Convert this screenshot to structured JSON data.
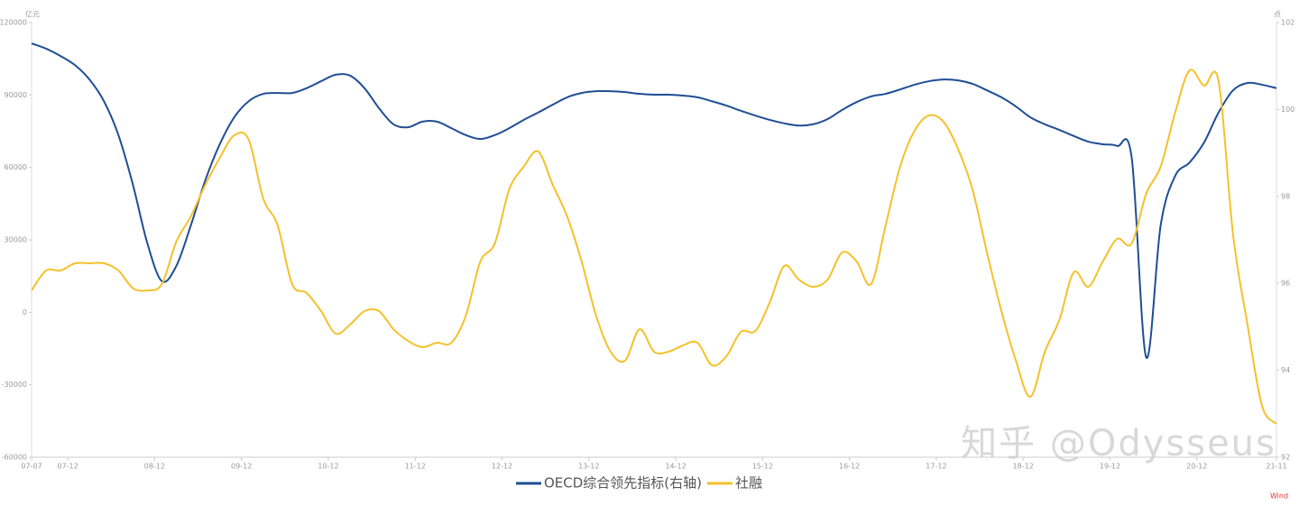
{
  "chart_data": {
    "type": "line",
    "y_unit": "亿元",
    "y2_unit": "点",
    "source": "Wind",
    "watermark": "知乎 @Odysseus",
    "x": [
      0,
      2,
      4,
      6,
      8,
      10,
      12,
      14,
      16,
      18,
      20,
      22,
      24,
      26,
      28,
      30,
      32,
      34,
      36,
      38,
      40,
      42,
      44,
      46,
      48,
      50,
      52,
      54,
      56,
      58,
      60,
      62,
      64,
      66,
      68,
      70,
      72,
      74,
      76,
      78,
      80,
      82,
      84,
      86,
      88,
      90,
      92,
      94,
      96,
      98,
      100,
      102,
      104,
      106,
      108,
      110,
      112,
      114,
      116,
      118,
      120,
      122,
      124,
      126,
      128,
      130,
      132,
      134,
      136,
      138,
      140,
      142,
      144,
      146,
      148,
      150,
      152,
      154,
      156,
      158,
      160,
      162,
      164,
      166,
      168,
      170,
      172
    ],
    "xlim": [
      0,
      172
    ],
    "xticks": [
      {
        "value": 0,
        "label": "07-07"
      },
      {
        "value": 5,
        "label": "07-12"
      },
      {
        "value": 17,
        "label": "08-12"
      },
      {
        "value": 29,
        "label": "09-12"
      },
      {
        "value": 41,
        "label": "10-12"
      },
      {
        "value": 53,
        "label": "11-12"
      },
      {
        "value": 65,
        "label": "12-12"
      },
      {
        "value": 77,
        "label": "13-12"
      },
      {
        "value": 89,
        "label": "14-12"
      },
      {
        "value": 101,
        "label": "15-12"
      },
      {
        "value": 113,
        "label": "16-12"
      },
      {
        "value": 125,
        "label": "17-12"
      },
      {
        "value": 137,
        "label": "18-12"
      },
      {
        "value": 149,
        "label": "19-12"
      },
      {
        "value": 161,
        "label": "20-12"
      },
      {
        "value": 172,
        "label": "21-11"
      }
    ],
    "ylim": [
      -60000,
      120000
    ],
    "yticks": [
      -60000,
      -30000,
      0,
      30000,
      60000,
      90000,
      120000
    ],
    "y2lim": [
      92,
      102
    ],
    "y2ticks": [
      92,
      94,
      96,
      98,
      100,
      102
    ],
    "legend": "bottom",
    "series": [
      {
        "name": "OECD综合领先指标(右轴)",
        "color": "#1f4e95",
        "axis": "y2",
        "values": [
          101.52,
          101.4,
          101.23,
          101.02,
          100.69,
          100.19,
          99.41,
          98.27,
          96.92,
          96.05,
          96.4,
          97.33,
          98.37,
          99.2,
          99.82,
          100.19,
          100.36,
          100.38,
          100.38,
          100.49,
          100.65,
          100.8,
          100.78,
          100.49,
          100.03,
          99.66,
          99.59,
          99.72,
          99.72,
          99.57,
          99.41,
          99.32,
          99.41,
          99.57,
          99.76,
          99.93,
          100.11,
          100.28,
          100.38,
          100.42,
          100.42,
          100.4,
          100.36,
          100.34,
          100.34,
          100.32,
          100.28,
          100.19,
          100.09,
          99.97,
          99.86,
          99.76,
          99.68,
          99.63,
          99.66,
          99.78,
          99.99,
          100.17,
          100.3,
          100.36,
          100.46,
          100.57,
          100.65,
          100.69,
          100.67,
          100.59,
          100.44,
          100.28,
          100.07,
          99.82,
          99.66,
          99.53,
          99.39,
          99.26,
          99.2,
          99.16,
          98.89,
          94.3,
          97.33,
          98.47,
          98.78,
          99.24,
          99.93,
          100.44,
          100.61,
          100.57,
          100.49
        ]
      },
      {
        "name": "社融",
        "color": "#f5c12b",
        "values": [
          9100,
          17300,
          17300,
          20300,
          20300,
          20300,
          17300,
          10000,
          9100,
          11700,
          29300,
          39700,
          52800,
          64000,
          73300,
          71500,
          47200,
          36000,
          11700,
          8000,
          500,
          -8800,
          -5100,
          500,
          500,
          -7000,
          -11800,
          -14400,
          -12600,
          -12600,
          -1400,
          21000,
          28500,
          50900,
          60300,
          66600,
          52800,
          39700,
          21000,
          -1400,
          -16300,
          -20000,
          -7000,
          -16300,
          -16300,
          -13700,
          -12600,
          -21900,
          -18200,
          -8100,
          -7700,
          4200,
          19200,
          13600,
          10600,
          13600,
          24800,
          21000,
          11700,
          36000,
          60300,
          75200,
          81500,
          78900,
          67700,
          50900,
          24800,
          500,
          -20000,
          -35000,
          -16300,
          -3200,
          16600,
          10600,
          21000,
          30400,
          28500,
          49100,
          60300,
          82700,
          100200,
          93900,
          95700,
          32300,
          -5100,
          -38700,
          -46200
        ]
      }
    ]
  }
}
